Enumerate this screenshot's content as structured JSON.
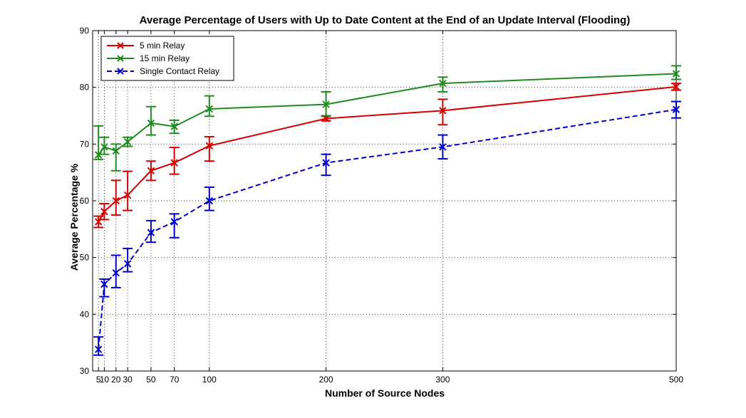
{
  "chart_data": {
    "type": "line",
    "title": "Average Percentage of Users with Up to Date Content at the End of an Update Interval (Flooding)",
    "xlabel": "Number of Source Nodes",
    "ylabel": "Average Percentage %",
    "x": [
      5,
      10,
      20,
      30,
      50,
      70,
      100,
      200,
      300,
      500
    ],
    "x_tick_labels": [
      "5",
      "10",
      "20",
      "30",
      "50",
      "70",
      "100",
      "200",
      "300",
      "500"
    ],
    "xlim": [
      0,
      500
    ],
    "ylim": [
      30,
      90
    ],
    "y_ticks": [
      30,
      40,
      50,
      60,
      70,
      80,
      90
    ],
    "grid": true,
    "legend_position": "top-left",
    "series": [
      {
        "name": "5 min Relay",
        "color": "#d40000",
        "dash": "solid",
        "values": [
          56.3,
          58.1,
          60.0,
          61.0,
          65.3,
          66.7,
          69.7,
          74.5,
          75.9,
          80.1
        ],
        "err_low": [
          1.0,
          1.4,
          2.5,
          2.7,
          1.7,
          2.0,
          2.7,
          0.4,
          2.5,
          0.6
        ],
        "err_high": [
          1.0,
          1.4,
          3.6,
          4.2,
          1.7,
          2.7,
          1.6,
          0.4,
          2.0,
          0.6
        ]
      },
      {
        "name": "15 min Relay",
        "color": "#1f8a1f",
        "dash": "solid",
        "values": [
          68.1,
          69.5,
          68.8,
          70.4,
          73.7,
          73.1,
          76.2,
          77.0,
          80.7,
          82.4
        ],
        "err_low": [
          0.8,
          1.3,
          3.5,
          0.8,
          2.1,
          1.2,
          1.3,
          2.0,
          1.5,
          1.0
        ],
        "err_high": [
          5.1,
          1.7,
          1.2,
          0.8,
          2.9,
          1.1,
          2.3,
          2.2,
          1.1,
          1.4
        ]
      },
      {
        "name": "Single Contact Relay",
        "color": "#0000cc",
        "dash": "dashed",
        "values": [
          33.8,
          45.3,
          47.3,
          48.9,
          54.4,
          56.3,
          60.0,
          66.7,
          69.5,
          76.1
        ],
        "err_low": [
          1.0,
          2.2,
          2.6,
          1.4,
          1.7,
          2.8,
          1.7,
          2.2,
          2.1,
          1.5
        ],
        "err_high": [
          2.2,
          0.9,
          3.1,
          2.7,
          2.1,
          1.4,
          2.4,
          1.5,
          2.1,
          1.4
        ]
      }
    ]
  }
}
